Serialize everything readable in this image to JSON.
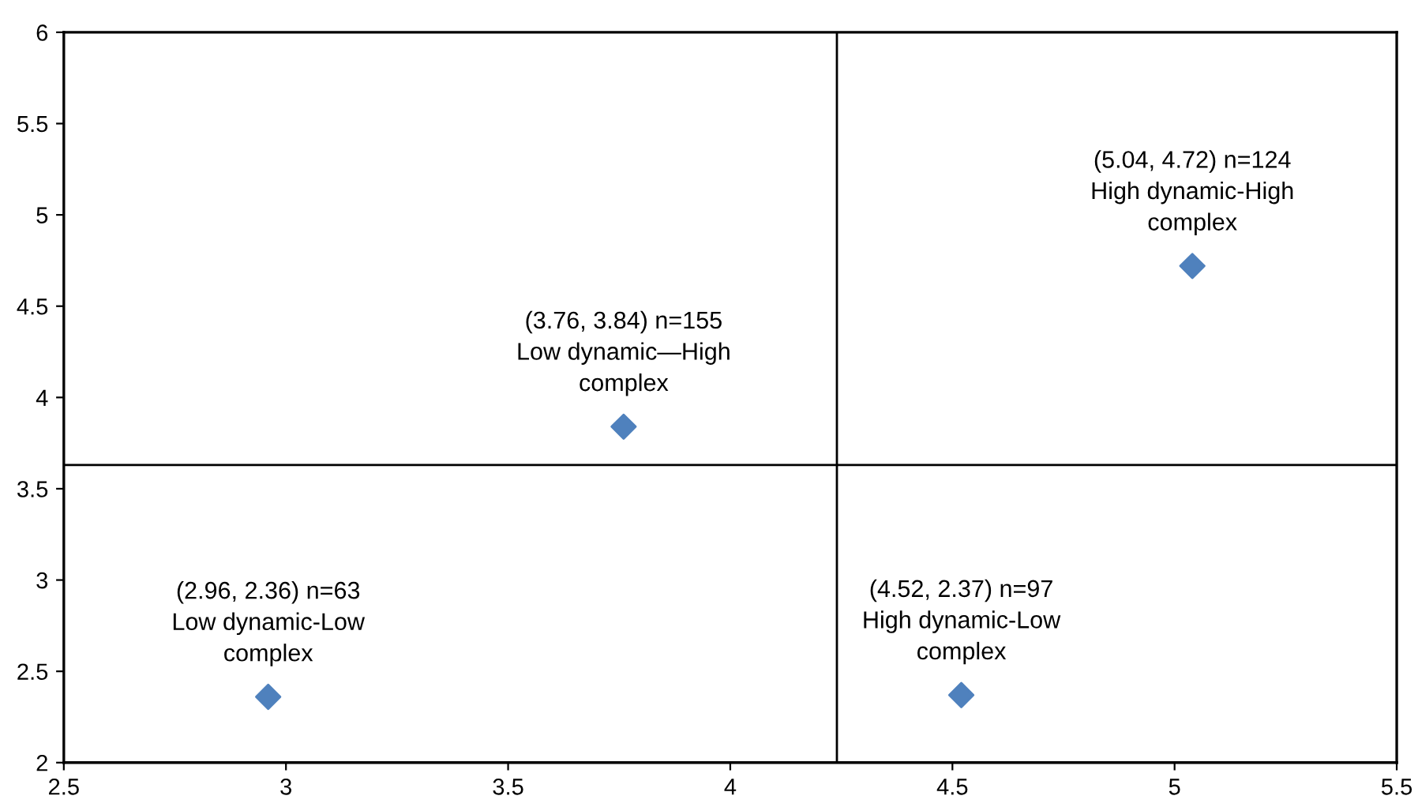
{
  "chart_data": {
    "type": "scatter",
    "x": [
      2.96,
      3.76,
      5.04,
      4.52
    ],
    "series": [
      {
        "color": "#4f81bd",
        "values": [
          2.36,
          3.84,
          4.72,
          2.37
        ]
      }
    ],
    "marker": "diamond",
    "xlim": [
      2.5,
      5.5
    ],
    "xticks": [
      2.5,
      3,
      3.5,
      4,
      4.5,
      5,
      5.5
    ],
    "ylim": [
      2,
      6
    ],
    "yticks": [
      2,
      2.5,
      3,
      3.5,
      4,
      4.5,
      5,
      5.5,
      6
    ],
    "grid": false,
    "legend": false,
    "ref_lines": [
      {
        "axis": "x",
        "value": 4.24,
        "color": "#000000"
      },
      {
        "axis": "y",
        "value": 3.63,
        "color": "#000000"
      }
    ],
    "annotations": [
      {
        "text": "(2.96, 2.36) n=63\nLow dynamic-Low\ncomplex",
        "x": 2.96,
        "y": 2.36
      },
      {
        "text": "(3.76, 3.84) n=155\nLow dynamic—High\ncomplex",
        "x": 3.76,
        "y": 3.84
      },
      {
        "text": "(5.04, 4.72) n=124\nHigh dynamic-High\ncomplex",
        "x": 5.04,
        "y": 4.72
      },
      {
        "text": "(4.52, 2.37) n=97\nHigh dynamic-Low\ncomplex",
        "x": 4.52,
        "y": 2.37
      }
    ]
  }
}
